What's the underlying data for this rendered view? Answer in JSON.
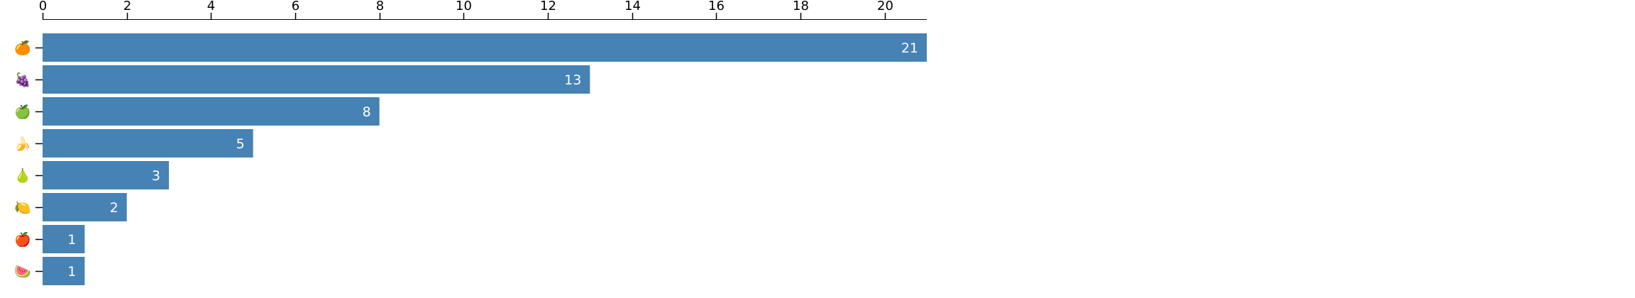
{
  "chart_data": {
    "type": "bar",
    "orientation": "horizontal",
    "categories": [
      "🍊",
      "🍇",
      "🍏",
      "🍌",
      "🍐",
      "🍋",
      "🍎",
      "🍉"
    ],
    "values": [
      21,
      13,
      8,
      5,
      3,
      2,
      1,
      1
    ],
    "xlim": [
      0,
      21
    ],
    "x_ticks": [
      0,
      2,
      4,
      6,
      8,
      10,
      12,
      14,
      16,
      18,
      20
    ],
    "x_axis_position": "top",
    "grid": false,
    "legend": "none",
    "data_labels": "inside-end",
    "bar_color": "#4682b4",
    "label_color": "#ffffff"
  }
}
